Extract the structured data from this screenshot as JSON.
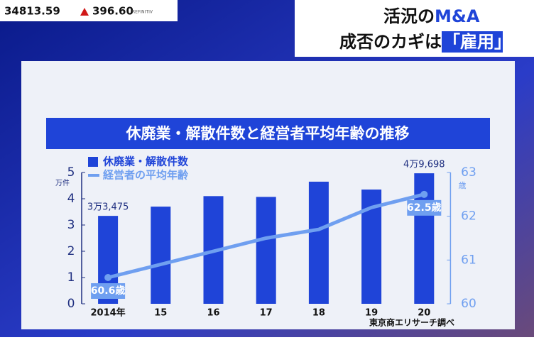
{
  "ticker": {
    "index": "34813.59",
    "change": "396.60",
    "source": "REFINITIV"
  },
  "headline": {
    "line1": [
      "活況の",
      "M&A"
    ],
    "line2": [
      "成否のカギは",
      "「雇用」"
    ]
  },
  "chart_data": {
    "type": "bar-line",
    "title": "休廃業・解散件数と経営者平均年齢の推移",
    "y_label": "万件",
    "y2_label": "歳",
    "categories": [
      "2014年",
      "15",
      "16",
      "17",
      "18",
      "19",
      "20"
    ],
    "series": [
      {
        "name": "休廃業・解散件数",
        "type": "bar",
        "color": "#1f44d8",
        "values": [
          3.3475,
          3.7,
          4.1,
          4.07,
          4.65,
          4.35,
          4.9698
        ],
        "value_labels": [
          "3万3,475",
          null,
          null,
          null,
          null,
          null,
          "4万9,698"
        ]
      },
      {
        "name": "経営者の平均年齢",
        "type": "line",
        "axis": "y2",
        "color": "#6f9ff0",
        "values": [
          60.6,
          60.9,
          61.2,
          61.5,
          61.7,
          62.2,
          62.5
        ],
        "value_labels": [
          "60.6歳",
          null,
          null,
          null,
          null,
          null,
          "62.5歳"
        ]
      }
    ],
    "ylim": [
      0,
      5
    ],
    "yticks": [
      0,
      1,
      2,
      3,
      4,
      5
    ],
    "y2lim": [
      60,
      63
    ],
    "y2ticks": [
      60,
      61,
      62,
      63
    ],
    "note": "東京商エリサーチ調べ"
  }
}
